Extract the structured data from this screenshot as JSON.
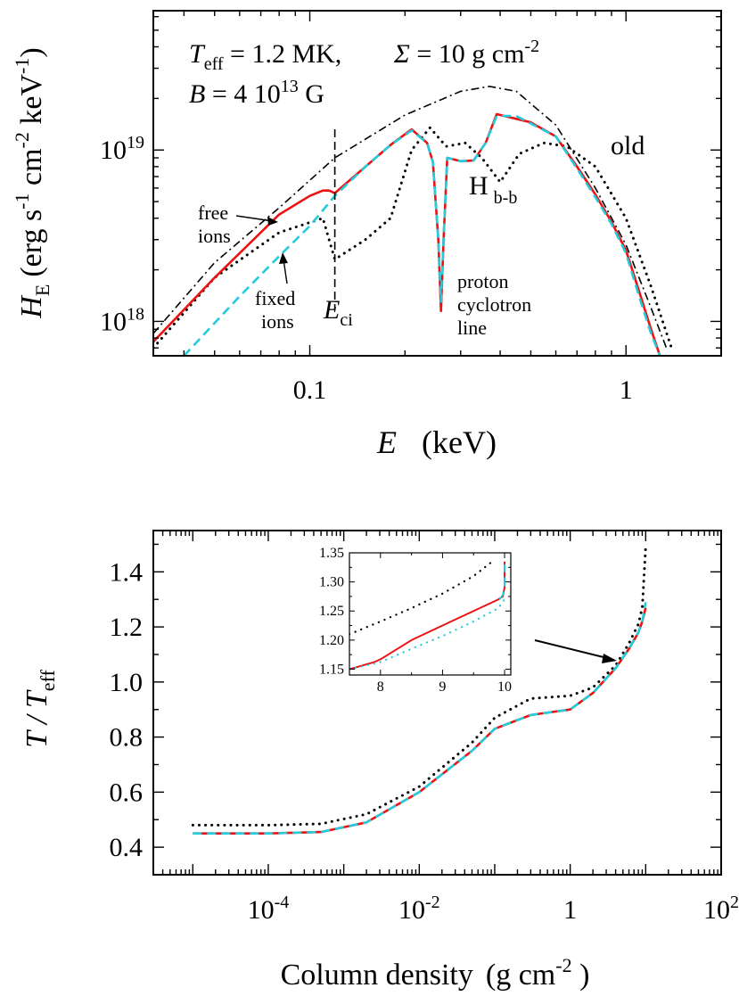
{
  "chart_data": [
    {
      "type": "line",
      "xscale": "log",
      "yscale": "log",
      "xlim": [
        0.032,
        2.0
      ],
      "ylim": [
        6.3e+17,
        6.5e+19
      ],
      "xlabel": "E",
      "xunit": "(keV)",
      "ylabel": "H",
      "ylabel_sub": "E",
      "yunit": "(erg s-1 cm-2 keV-1)",
      "xticks": [
        {
          "v": 0.1,
          "label": "0.1"
        },
        {
          "v": 1,
          "label": "1"
        }
      ],
      "yticks": [
        {
          "v": 1e+18,
          "base": "10",
          "exp": "18"
        },
        {
          "v": 1e+19,
          "base": "10",
          "exp": "19"
        }
      ],
      "annotations": {
        "teff": "T",
        "teff_sub": "eff",
        "teff_val": " = 1.2 MK,",
        "sigma": "Σ",
        "sigma_val": " = 10 g cm",
        "sigma_exp": "-2",
        "b": "B",
        "b_val": " = 4 10",
        "b_exp": "13",
        "b_unit": " G",
        "free": [
          "free",
          "ions"
        ],
        "fixed": [
          "fixed",
          "ions"
        ],
        "eci": "E",
        "eci_sub": "ci",
        "proton": [
          "proton",
          "cyclotron",
          "line"
        ],
        "hbb": "H",
        "hbb_sub": "b-b",
        "old": "old"
      },
      "eci_energy": 0.12,
      "series": [
        {
          "style": "dashdot",
          "color": "#000000",
          "x": [
            0.032,
            0.05,
            0.08,
            0.12,
            0.2,
            0.3,
            0.37,
            0.45,
            0.6,
            0.8,
            1.0,
            1.2,
            1.35
          ],
          "y": [
            8.5e+17,
            2.2e+18,
            4.6e+18,
            9e+18,
            1.6e+19,
            2.2e+19,
            2.35e+19,
            2.2e+19,
            1.4e+19,
            6e+18,
            2.8e+18,
            1.2e+18,
            6.8e+17
          ]
        },
        {
          "style": "dotted",
          "color": "#000000",
          "x": [
            0.032,
            0.05,
            0.08,
            0.11,
            0.12,
            0.15,
            0.18,
            0.21,
            0.24,
            0.27,
            0.31,
            0.35,
            0.4,
            0.46,
            0.55,
            0.65,
            0.8,
            1.0,
            1.2,
            1.4
          ],
          "y": [
            7e+17,
            1.8e+18,
            3.3e+18,
            4e+18,
            2.3e+18,
            3e+18,
            4e+18,
            1e+19,
            1.35e+19,
            1.05e+19,
            1.1e+19,
            9e+18,
            6.5e+18,
            9.5e+18,
            1.1e+19,
            1.05e+19,
            8e+18,
            4e+18,
            1.6e+18,
            6.8e+17
          ]
        },
        {
          "style": "solid",
          "color": "#ee1111",
          "x": [
            0.032,
            0.05,
            0.08,
            0.1,
            0.11,
            0.115,
            0.12,
            0.15,
            0.18,
            0.21,
            0.235,
            0.245,
            0.255,
            0.26,
            0.265,
            0.272,
            0.3,
            0.33,
            0.36,
            0.39,
            0.5,
            0.6,
            0.7,
            0.8,
            0.9,
            1.0,
            1.1,
            1.2,
            1.28
          ],
          "y": [
            7.6e+17,
            1.8e+18,
            4.2e+18,
            5.4e+18,
            5.8e+18,
            5.8e+18,
            5.6e+18,
            8e+18,
            1.07e+19,
            1.32e+19,
            1.1e+19,
            8.5e+18,
            3e+18,
            1.15e+18,
            3e+18,
            9e+18,
            8.6e+18,
            8.7e+18,
            1.1e+19,
            1.62e+19,
            1.45e+19,
            1.2e+19,
            8e+18,
            5.5e+18,
            3.8e+18,
            2.6e+18,
            1.5e+18,
            9e+17,
            6.3e+17
          ]
        },
        {
          "style": "dashed",
          "color": "#22ccdd",
          "x": [
            0.04,
            0.06,
            0.08,
            0.1,
            0.12,
            0.15,
            0.18,
            0.21,
            0.235,
            0.245,
            0.255,
            0.26,
            0.265,
            0.272,
            0.3,
            0.33,
            0.36,
            0.39,
            0.45,
            0.6,
            0.7,
            0.8,
            0.9,
            1.0,
            1.1,
            1.2,
            1.28
          ],
          "y": [
            6.3e+17,
            1.4e+18,
            2.4e+18,
            3.6e+18,
            5.4e+18,
            8e+18,
            1.07e+19,
            1.3e+19,
            1.1e+19,
            8.5e+18,
            3e+18,
            1.3e+18,
            3e+18,
            9e+18,
            8.6e+18,
            8.7e+18,
            1.1e+19,
            1.58e+19,
            1.58e+19,
            1.2e+19,
            7.8e+18,
            5.3e+18,
            3.7e+18,
            2.5e+18,
            1.4e+18,
            8.5e+17,
            6.3e+17
          ]
        }
      ]
    },
    {
      "type": "line",
      "xscale": "log",
      "yscale": "linear",
      "xlim": [
        3e-06,
        100
      ],
      "ylim": [
        0.3,
        1.55
      ],
      "xlabel": "Column density",
      "xunit": "(g cm-2 )",
      "ylabel": "T / T",
      "ylabel_sub": "eff",
      "xticks": [
        {
          "v": 0.0001,
          "base": "10",
          "exp": "-4"
        },
        {
          "v": 0.01,
          "base": "10",
          "exp": "-2"
        },
        {
          "v": 1,
          "base": "1",
          "exp": ""
        },
        {
          "v": 100,
          "base": "10",
          "exp": "2"
        }
      ],
      "yticks": [
        {
          "v": 0.4,
          "label": "0.4"
        },
        {
          "v": 0.6,
          "label": "0.6"
        },
        {
          "v": 0.8,
          "label": "0.8"
        },
        {
          "v": 1.0,
          "label": "1.0"
        },
        {
          "v": 1.2,
          "label": "1.2"
        },
        {
          "v": 1.4,
          "label": "1.4"
        }
      ],
      "series": [
        {
          "style": "dotted",
          "color": "#000000",
          "x": [
            1e-05,
            0.0001,
            0.0005,
            0.002,
            0.01,
            0.05,
            0.1,
            0.3,
            1,
            2,
            4,
            6,
            8,
            9,
            10
          ],
          "y": [
            0.48,
            0.48,
            0.485,
            0.52,
            0.62,
            0.78,
            0.87,
            0.94,
            0.95,
            0.98,
            1.06,
            1.14,
            1.21,
            1.27,
            1.49
          ]
        },
        {
          "style": "solid",
          "color": "#ee1111",
          "x": [
            1e-05,
            0.0001,
            0.0005,
            0.002,
            0.01,
            0.05,
            0.1,
            0.3,
            1,
            2,
            4,
            6,
            8,
            9,
            10
          ],
          "y": [
            0.45,
            0.45,
            0.455,
            0.49,
            0.6,
            0.75,
            0.83,
            0.88,
            0.9,
            0.96,
            1.05,
            1.12,
            1.18,
            1.22,
            1.27
          ]
        },
        {
          "style": "dashed",
          "color": "#22ccdd",
          "x": [
            1e-05,
            0.0001,
            0.0005,
            0.002,
            0.01,
            0.05,
            0.1,
            0.3,
            1,
            2,
            4,
            6,
            8,
            9,
            10
          ],
          "y": [
            0.45,
            0.45,
            0.455,
            0.49,
            0.6,
            0.75,
            0.83,
            0.88,
            0.9,
            0.96,
            1.05,
            1.12,
            1.18,
            1.22,
            1.29
          ]
        }
      ],
      "inset": {
        "xscale": "linear",
        "xlim": [
          7.5,
          10.1
        ],
        "ylim": [
          1.14,
          1.35
        ],
        "xticks": [
          {
            "v": 8,
            "label": "8"
          },
          {
            "v": 9,
            "label": "9"
          },
          {
            "v": 10,
            "label": "10"
          }
        ],
        "yticks": [
          {
            "v": 1.15,
            "label": "1.15"
          },
          {
            "v": 1.2,
            "label": "1.20"
          },
          {
            "v": 1.25,
            "label": "1.25"
          },
          {
            "v": 1.3,
            "label": "1.30"
          },
          {
            "v": 1.35,
            "label": "1.35"
          }
        ],
        "series": [
          {
            "style": "dotted",
            "color": "#000000",
            "x": [
              7.5,
              8.0,
              8.5,
              9.0,
              9.5,
              9.8
            ],
            "y": [
              1.21,
              1.232,
              1.255,
              1.28,
              1.31,
              1.335
            ]
          },
          {
            "style": "solid",
            "color": "#ee1111",
            "x": [
              7.5,
              7.9,
              8.0,
              8.5,
              9.0,
              9.5,
              9.9,
              9.97,
              10.0,
              10.0
            ],
            "y": [
              1.15,
              1.162,
              1.167,
              1.2,
              1.225,
              1.25,
              1.27,
              1.275,
              1.29,
              1.335
            ]
          },
          {
            "style": "dashed",
            "color": "#22ccdd",
            "x": [
              9.92,
              9.97,
              10.0,
              10.0
            ],
            "y": [
              1.27,
              1.278,
              1.29,
              1.33
            ]
          },
          {
            "style": "dotted",
            "color": "#22ccdd",
            "x": [
              7.5,
              8.0,
              8.5,
              9.0,
              9.5,
              9.9,
              10.0
            ],
            "y": [
              1.15,
              1.162,
              1.185,
              1.207,
              1.232,
              1.255,
              1.27
            ]
          }
        ]
      }
    }
  ]
}
